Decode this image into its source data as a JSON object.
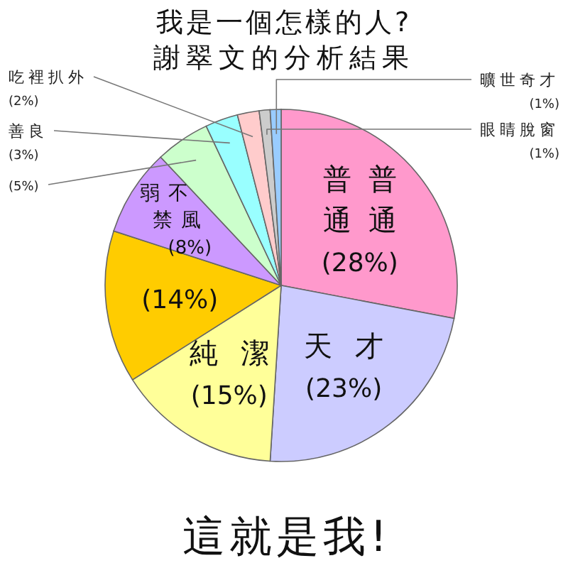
{
  "chart_data": {
    "type": "pie",
    "title": "我是一個怎樣的人?",
    "subtitle": "謝翠文的分析結果",
    "categories": [
      "普普通通",
      "天才",
      "純潔",
      null,
      "弱不禁風",
      null,
      "善良",
      "吃裡扒外",
      "眼睛脫窗",
      "曠世奇才"
    ],
    "values": [
      28,
      23,
      15,
      14,
      8,
      5,
      3,
      2,
      1,
      1
    ],
    "colors": [
      "#ff99cc",
      "#ccccff",
      "#ffff99",
      "#ffcc00",
      "#cc99ff",
      "#ccffcc",
      "#99ffff",
      "#ffcccc",
      "#cccccc",
      "#99ccff"
    ],
    "value_labels": [
      "(28%)",
      "(23%)",
      "(15%)",
      "(14%)",
      "(8%)",
      "(5%)",
      "(3%)",
      "(2%)",
      "(1%)",
      "(1%)"
    ],
    "annotations": [
      "這就是我!"
    ]
  }
}
